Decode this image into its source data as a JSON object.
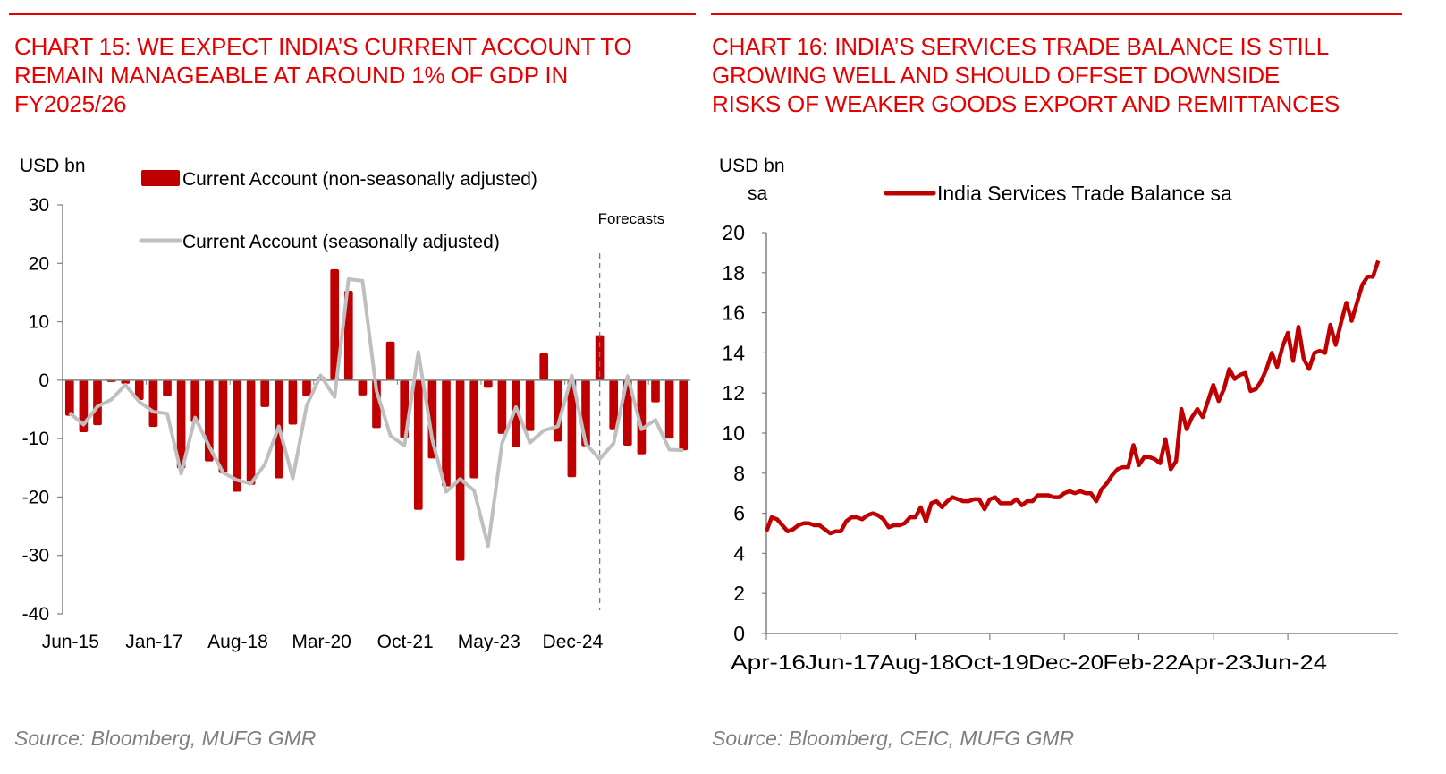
{
  "charts": [
    {
      "title_lines": [
        "CHART 15: WE EXPECT INDIA’S CURRENT ACCOUNT TO",
        "REMAIN MANAGEABLE AT AROUND 1% OF GDP IN",
        "FY2025/26"
      ],
      "source": "Source: Bloomberg, MUFG GMR"
    },
    {
      "title_lines": [
        "CHART 16: INDIA’S SERVICES TRADE BALANCE IS STILL",
        "GROWING WELL AND SHOULD OFFSET DOWNSIDE",
        "RISKS OF WEAKER GOODS EXPORT AND REMITTANCES"
      ],
      "source": "Source: Bloomberg, CEIC, MUFG GMR"
    }
  ],
  "colors": {
    "title_red": "#e60000",
    "bar_red": "#c00000",
    "sa_grey": "#bfbfbf",
    "forecast_line": "#4f81bd",
    "axis": "#808080"
  },
  "chart_data": [
    {
      "type": "bar",
      "title": "CHART 15: WE EXPECT INDIA'S CURRENT ACCOUNT TO REMAIN MANAGEABLE AT AROUND 1% OF GDP IN FY2025/26",
      "ylabel": "USD bn",
      "xlabel": "",
      "ylim": [
        -40,
        30
      ],
      "yticks": [
        30,
        20,
        10,
        0,
        -10,
        -20,
        -30,
        -40
      ],
      "xtick_labels": [
        "Jun-15",
        "Jan-17",
        "Aug-18",
        "Mar-20",
        "Oct-21",
        "May-23",
        "Dec-24"
      ],
      "annotation": "Forecasts",
      "forecast_start_index": 38,
      "grid": false,
      "legend_position": "top",
      "series": [
        {
          "name": "Current Account (non-seasonally adjusted)",
          "type": "bar",
          "values": [
            -6.1,
            -8.9,
            -7.7,
            -0.3,
            -0.6,
            -3.4,
            -8.0,
            -2.7,
            -15.1,
            -7.2,
            -13.9,
            -15.9,
            -19.1,
            -17.9,
            -4.6,
            -16.8,
            -7.6,
            -2.7,
            0.6,
            19.0,
            15.3,
            -2.6,
            -8.2,
            6.6,
            -9.9,
            -22.2,
            -13.4,
            -18.2,
            -30.9,
            -16.8,
            -1.3,
            -9.2,
            -11.4,
            -8.7,
            4.6,
            -10.5,
            -16.6,
            -11.3,
            7.7,
            -8.4,
            -11.2,
            -12.7,
            -3.8,
            -10.0,
            -12.0
          ],
          "note": "Last bars beyond Dec-24 are forecasts"
        },
        {
          "name": "Current Account (seasonally adjusted)",
          "type": "line",
          "values": [
            -5.6,
            -7.6,
            -4.5,
            -3.3,
            -0.8,
            -3.7,
            -5.4,
            -5.7,
            -16.0,
            -6.4,
            -11.3,
            -15.8,
            -17.1,
            -17.7,
            -14.4,
            -7.9,
            -16.8,
            -4.3,
            0.8,
            -2.9,
            17.3,
            17.0,
            -1.8,
            -9.5,
            -11.2,
            4.8,
            -10.2,
            -19.1,
            -16.9,
            -18.9,
            -28.4,
            -10.8,
            -4.6,
            -10.7,
            -8.6,
            -7.9,
            0.8,
            -10.9,
            -13.5,
            -10.8,
            0.7,
            -8.4,
            -6.8,
            -11.9,
            -12.0
          ]
        }
      ]
    },
    {
      "type": "line",
      "title": "CHART 16: INDIA'S SERVICES TRADE BALANCE IS STILL GROWING WELL AND SHOULD OFFSET DOWNSIDE RISKS OF WEAKER GOODS EXPORT AND REMITTANCES",
      "ylabel": "USD bn sa",
      "ylabel_lines": [
        "USD bn",
        "sa"
      ],
      "xlabel": "",
      "ylim": [
        0,
        20
      ],
      "yticks": [
        0,
        2,
        4,
        6,
        8,
        10,
        12,
        14,
        16,
        18,
        20
      ],
      "xtick_labels": [
        "Apr-16",
        "Jun-17",
        "Aug-18",
        "Oct-19",
        "Dec-20",
        "Feb-22",
        "Apr-23",
        "Jun-24"
      ],
      "grid": false,
      "legend_position": "top",
      "x_start": "Apr-16",
      "frequency": "monthly",
      "series": [
        {
          "name": "India Services Trade Balance sa",
          "values": [
            5.1,
            5.8,
            5.7,
            5.4,
            5.1,
            5.2,
            5.4,
            5.5,
            5.5,
            5.4,
            5.4,
            5.2,
            5.0,
            5.1,
            5.1,
            5.6,
            5.8,
            5.8,
            5.7,
            5.9,
            6.0,
            5.9,
            5.7,
            5.3,
            5.4,
            5.4,
            5.5,
            5.8,
            5.8,
            6.3,
            5.6,
            6.5,
            6.6,
            6.3,
            6.6,
            6.8,
            6.7,
            6.6,
            6.6,
            6.7,
            6.7,
            6.2,
            6.7,
            6.8,
            6.5,
            6.5,
            6.5,
            6.7,
            6.4,
            6.6,
            6.6,
            6.9,
            6.9,
            6.9,
            6.8,
            6.8,
            7.0,
            7.1,
            7.0,
            7.1,
            7.0,
            7.0,
            6.6,
            7.2,
            7.5,
            7.9,
            8.2,
            8.3,
            8.3,
            9.4,
            8.4,
            8.8,
            8.8,
            8.7,
            8.5,
            9.7,
            8.2,
            8.6,
            11.2,
            10.2,
            10.8,
            11.2,
            10.8,
            11.6,
            12.4,
            11.6,
            12.2,
            13.2,
            12.7,
            12.9,
            13.0,
            12.1,
            12.2,
            12.6,
            13.2,
            14.0,
            13.3,
            14.3,
            15.0,
            13.6,
            15.3,
            13.7,
            13.2,
            14.0,
            14.1,
            14.0,
            15.4,
            14.4,
            15.5,
            16.5,
            15.6,
            16.5,
            17.4,
            17.8,
            17.8,
            18.6
          ]
        }
      ]
    }
  ]
}
